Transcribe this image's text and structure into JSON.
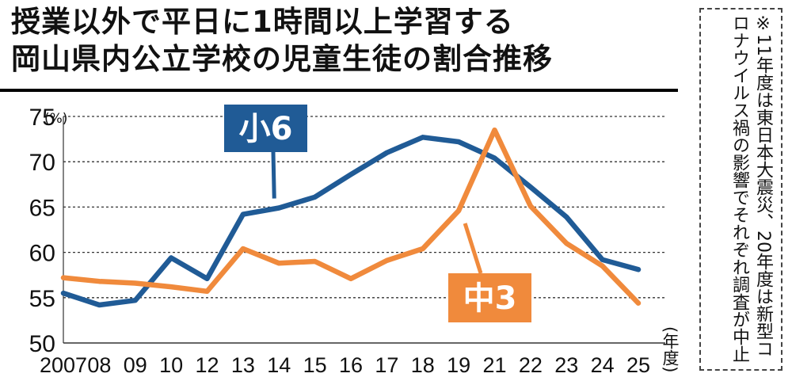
{
  "title": {
    "line1": "授業以外で平日に1時間以上学習する",
    "line2": "岡山県内公立学校の児童生徒の割合推移"
  },
  "note": "※11年度は東日本大震災、20年度は新型コロナウイルス禍の影響でそれぞれ調査が中止",
  "colors": {
    "sho6": "#205b96",
    "chu3": "#f08a3c",
    "grid": "#333333"
  },
  "chart_data": {
    "type": "line",
    "categories": [
      "2007",
      "08",
      "09",
      "10",
      "12",
      "13",
      "14",
      "15",
      "16",
      "17",
      "18",
      "19",
      "21",
      "22",
      "23",
      "24",
      "25"
    ],
    "y_unit": "(%)",
    "x_unit": "(年度)",
    "ylim": [
      50,
      75
    ],
    "yticks": [
      50,
      55,
      60,
      65,
      70,
      75
    ],
    "grid": true,
    "series": [
      {
        "name": "小6",
        "color": "#205b96",
        "values": [
          55.5,
          54.2,
          54.7,
          59.4,
          57.1,
          64.2,
          64.9,
          66.1,
          68.6,
          71.0,
          72.7,
          72.2,
          70.4,
          67.2,
          63.9,
          59.2,
          58.1
        ]
      },
      {
        "name": "中3",
        "color": "#f08a3c",
        "values": [
          57.2,
          56.8,
          56.6,
          56.2,
          55.7,
          60.4,
          58.8,
          59.0,
          57.1,
          59.1,
          60.4,
          64.6,
          73.5,
          65.1,
          61.0,
          58.5,
          54.4
        ]
      }
    ]
  }
}
